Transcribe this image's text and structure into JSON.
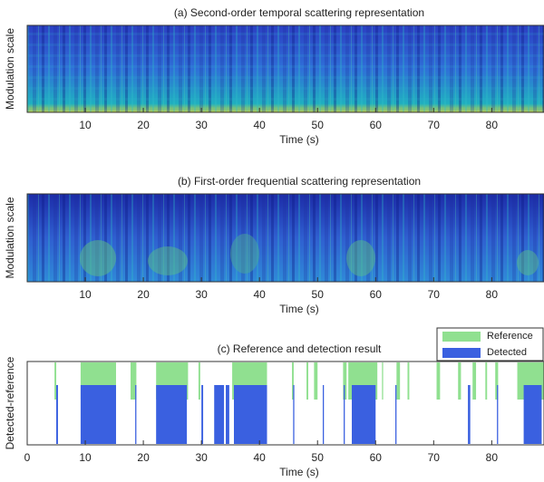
{
  "chart_data": [
    {
      "type": "heatmap",
      "title": "(a) Second-order temporal scattering representation",
      "xlabel": "Time (s)",
      "ylabel": "Modulation scale",
      "xlim": [
        0,
        89
      ],
      "xticks": [
        10,
        20,
        30,
        40,
        50,
        60,
        70,
        80
      ]
    },
    {
      "type": "heatmap",
      "title": "(b) First-order frequential scattering representation",
      "xlabel": "Time (s)",
      "ylabel": "Modulation scale",
      "xlim": [
        0,
        89
      ],
      "xticks": [
        10,
        20,
        30,
        40,
        50,
        60,
        70,
        80
      ]
    },
    {
      "type": "event",
      "title": "(c) Reference and detection result",
      "xlabel": "Time (s)",
      "ylabel": "Detected-reference",
      "xlim": [
        0,
        89
      ],
      "xticks": [
        0,
        10,
        20,
        30,
        40,
        50,
        60,
        70,
        80
      ],
      "legend": "top-right",
      "series": [
        {
          "name": "Reference",
          "color": "#90e090",
          "intervals": [
            [
              4.7,
              5.0
            ],
            [
              9.2,
              15.3
            ],
            [
              17.8,
              18.8
            ],
            [
              22.2,
              27.7
            ],
            [
              29.5,
              29.8
            ],
            [
              35.3,
              41.3
            ],
            [
              45.6,
              45.9
            ],
            [
              48.1,
              48.4
            ],
            [
              49.4,
              50.0
            ],
            [
              54.4,
              55.0
            ],
            [
              55.3,
              60.3
            ],
            [
              61.1,
              61.3
            ],
            [
              63.6,
              64.2
            ],
            [
              65.5,
              65.8
            ],
            [
              70.5,
              71.1
            ],
            [
              74.2,
              74.7
            ],
            [
              76.7,
              77.3
            ],
            [
              78.9,
              79.2
            ],
            [
              80.6,
              81.1
            ],
            [
              84.4,
              89.0
            ]
          ]
        },
        {
          "name": "Detected",
          "color": "#3a60e0",
          "intervals": [
            [
              5.0,
              5.3
            ],
            [
              9.2,
              15.3
            ],
            [
              18.6,
              18.8
            ],
            [
              22.2,
              27.5
            ],
            [
              30.0,
              30.3
            ],
            [
              32.2,
              33.9
            ],
            [
              34.2,
              34.8
            ],
            [
              35.6,
              41.3
            ],
            [
              45.8,
              46.0
            ],
            [
              50.9,
              51.1
            ],
            [
              54.5,
              54.7
            ],
            [
              55.9,
              60.0
            ],
            [
              63.4,
              63.6
            ],
            [
              75.9,
              76.3
            ],
            [
              80.9,
              81.1
            ],
            [
              85.5,
              88.6
            ]
          ]
        }
      ]
    }
  ]
}
